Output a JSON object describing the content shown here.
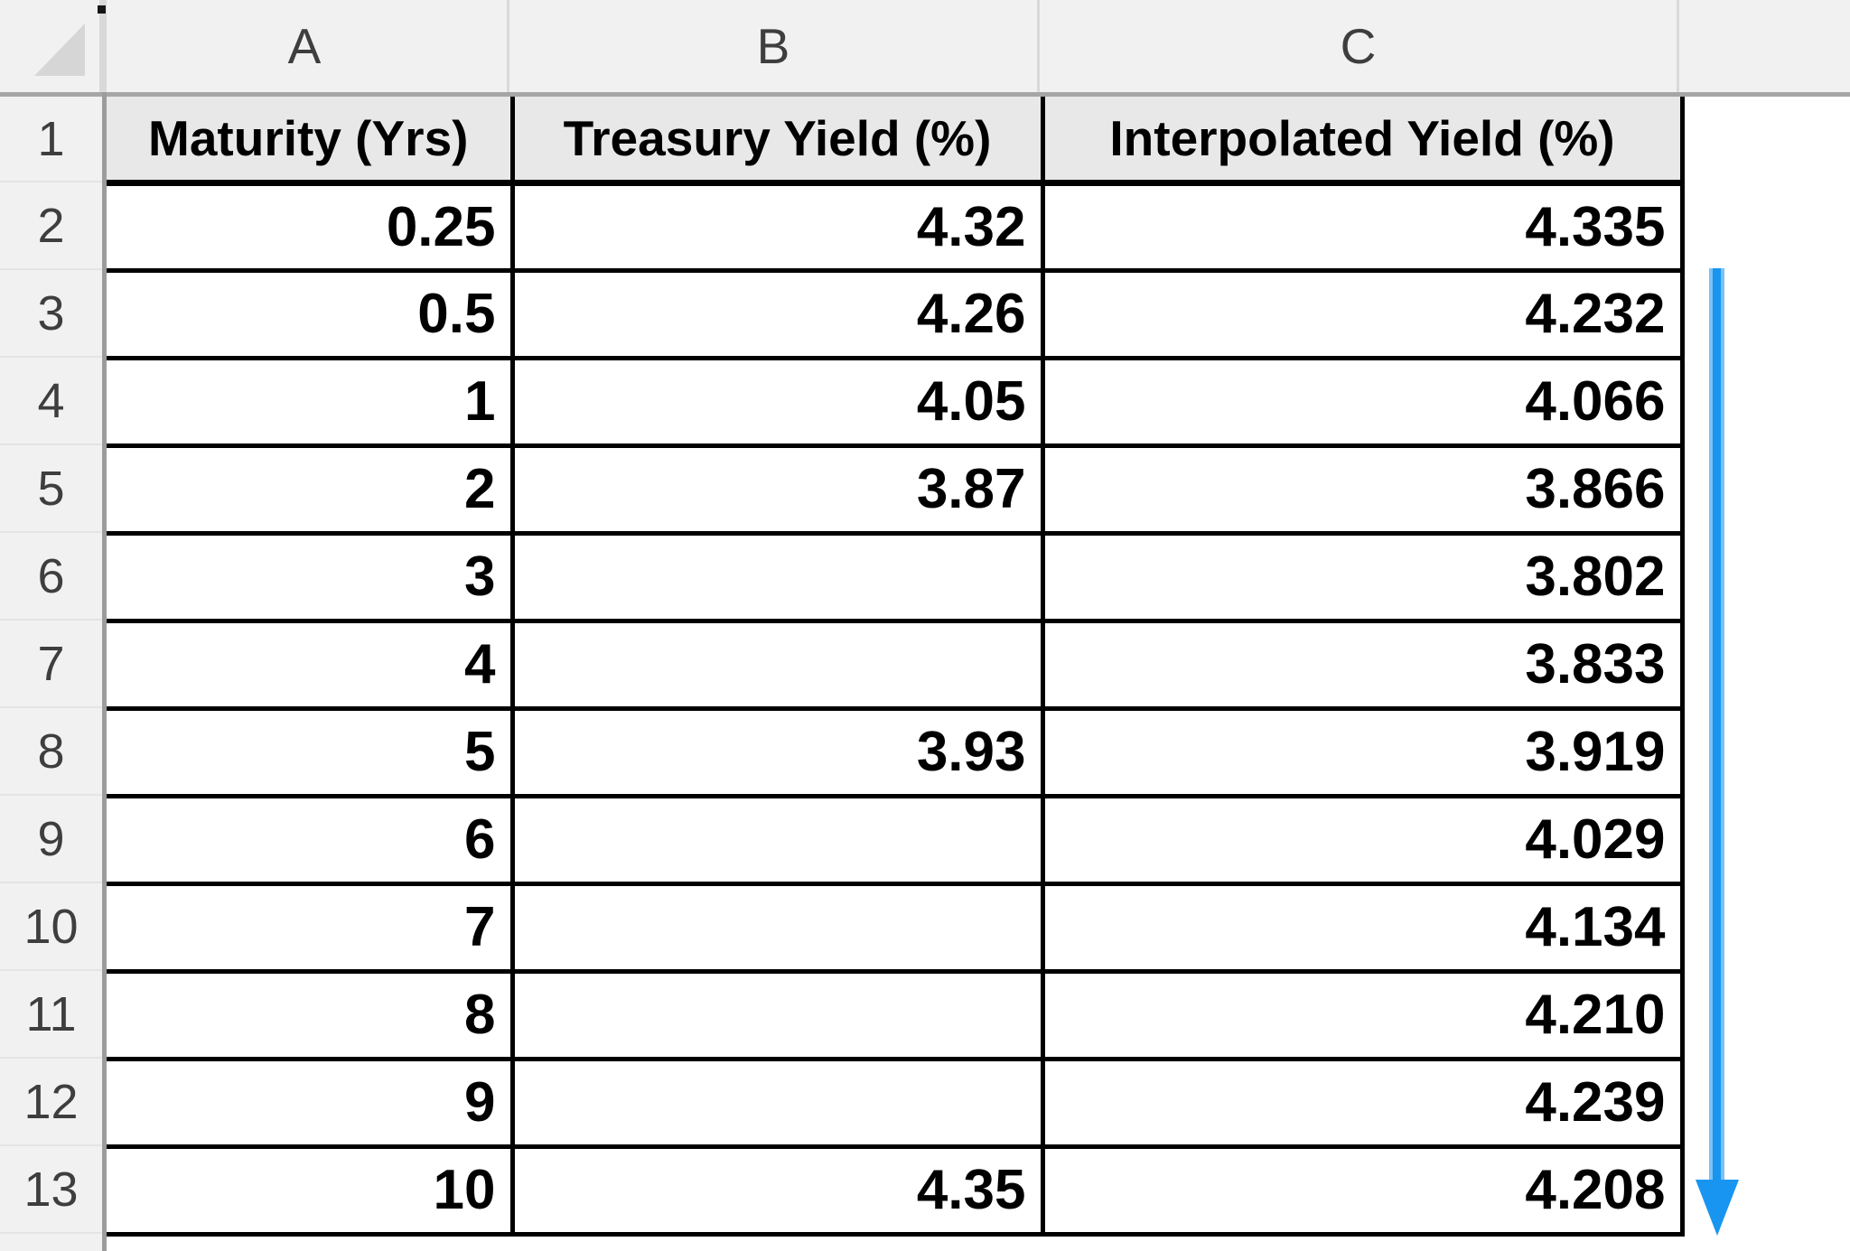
{
  "sheet": {
    "column_letters": [
      "A",
      "B",
      "C"
    ],
    "row_numbers": [
      "1",
      "2",
      "3",
      "4",
      "5",
      "6",
      "7",
      "8",
      "9",
      "10",
      "11",
      "12",
      "13"
    ],
    "table": {
      "headers": {
        "maturity": "Maturity (Yrs)",
        "treasury": "Treasury Yield (%)",
        "interpolated": "Interpolated Yield (%)"
      },
      "rows": [
        {
          "maturity": "0.25",
          "treasury": "4.32",
          "interpolated": "4.335"
        },
        {
          "maturity": "0.5",
          "treasury": "4.26",
          "interpolated": "4.232"
        },
        {
          "maturity": "1",
          "treasury": "4.05",
          "interpolated": "4.066"
        },
        {
          "maturity": "2",
          "treasury": "3.87",
          "interpolated": "3.866"
        },
        {
          "maturity": "3",
          "treasury": "",
          "interpolated": "3.802"
        },
        {
          "maturity": "4",
          "treasury": "",
          "interpolated": "3.833"
        },
        {
          "maturity": "5",
          "treasury": "3.93",
          "interpolated": "3.919"
        },
        {
          "maturity": "6",
          "treasury": "",
          "interpolated": "4.029"
        },
        {
          "maturity": "7",
          "treasury": "",
          "interpolated": "4.134"
        },
        {
          "maturity": "8",
          "treasury": "",
          "interpolated": "4.210"
        },
        {
          "maturity": "9",
          "treasury": "",
          "interpolated": "4.239"
        },
        {
          "maturity": "10",
          "treasury": "4.35",
          "interpolated": "4.208"
        }
      ]
    },
    "colors": {
      "arrow_blue": "#1895f0",
      "arrow_blue_light": "#7dc0f6",
      "header_fill": "#e9e8e8",
      "strip_fill": "#f2f1f1",
      "grid_black": "#000000",
      "strip_border_gray": "#a6a6a6"
    },
    "icons": {
      "select_all": "select-all-triangle",
      "annotation": "down-arrow"
    }
  }
}
